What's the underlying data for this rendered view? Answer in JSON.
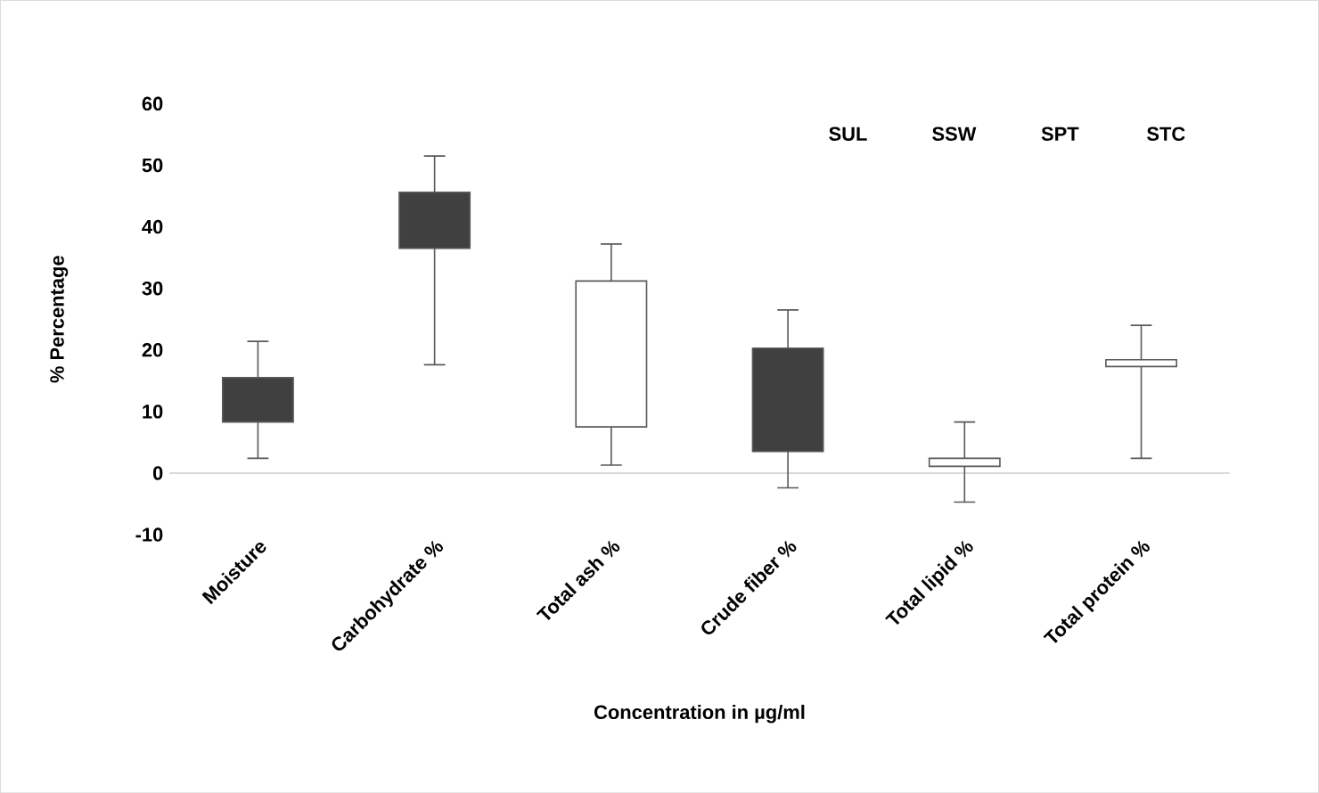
{
  "chart_data": {
    "type": "candlestick",
    "xlabel": "Concentration in µg/ml",
    "ylabel": "%  Percentage",
    "categories": [
      "Moisture",
      "Carbohydrate %",
      "Total ash %",
      "Crude fiber %",
      "Total lipid %",
      "Total protein %"
    ],
    "ohlc": [
      [
        15.5,
        21.4,
        2.4,
        8.3
      ],
      [
        45.6,
        51.5,
        17.6,
        36.5
      ],
      [
        7.5,
        37.2,
        1.3,
        31.2
      ],
      [
        20.3,
        26.5,
        -2.4,
        3.5
      ],
      [
        1.1,
        8.3,
        -4.7,
        2.4
      ],
      [
        17.3,
        24.0,
        2.4,
        18.4
      ]
    ],
    "colors": [
      "#404040",
      "#404040",
      "#ffffff",
      "#404040",
      "#ffffff",
      "#ffffff"
    ],
    "ylim": [
      -10,
      60
    ],
    "yticks": [
      -10,
      0,
      10,
      20,
      30,
      40,
      50,
      60
    ],
    "annotations": [
      "SUL",
      "SSW",
      "SPT",
      "STC"
    ]
  }
}
